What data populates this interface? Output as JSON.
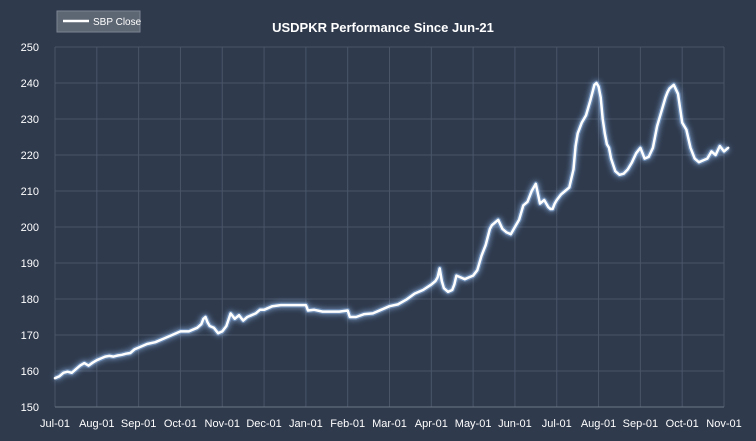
{
  "chart_data": {
    "type": "line",
    "title": "USDPKR Performance Since Jun-21",
    "xlabel": "",
    "ylabel": "",
    "ylim": [
      150,
      250
    ],
    "yticks": [
      150,
      160,
      170,
      180,
      190,
      200,
      210,
      220,
      230,
      240,
      250
    ],
    "xticks": [
      "Jul-01",
      "Aug-01",
      "Sep-01",
      "Oct-01",
      "Nov-01",
      "Dec-01",
      "Jan-01",
      "Feb-01",
      "Mar-01",
      "Apr-01",
      "May-01",
      "Jun-01",
      "Jul-01",
      "Aug-01",
      "Sep-01",
      "Oct-01",
      "Nov-01"
    ],
    "grid": true,
    "legend_position": "top-left",
    "background_color": "#2f3a4d",
    "grid_color": "#4a5568",
    "line_color": "#ffffff",
    "glow_color": "#9ec8ff",
    "series": [
      {
        "name": "SBP Close",
        "x": [
          0.0,
          0.1,
          0.2,
          0.3,
          0.4,
          0.5,
          0.6,
          0.7,
          0.8,
          0.9,
          1.0,
          1.1,
          1.2,
          1.3,
          1.4,
          1.5,
          1.6,
          1.7,
          1.8,
          1.9,
          2.0,
          2.2,
          2.4,
          2.6,
          2.8,
          3.0,
          3.2,
          3.4,
          3.5,
          3.55,
          3.6,
          3.65,
          3.7,
          3.8,
          3.9,
          4.0,
          4.1,
          4.2,
          4.3,
          4.4,
          4.5,
          4.6,
          4.7,
          4.8,
          4.9,
          5.0,
          5.2,
          5.4,
          5.6,
          5.8,
          6.0,
          6.05,
          6.2,
          6.4,
          6.6,
          6.8,
          7.0,
          7.05,
          7.2,
          7.4,
          7.6,
          7.8,
          8.0,
          8.2,
          8.4,
          8.6,
          8.8,
          9.0,
          9.1,
          9.15,
          9.2,
          9.25,
          9.3,
          9.4,
          9.5,
          9.55,
          9.6,
          9.7,
          9.8,
          9.9,
          10.0,
          10.1,
          10.2,
          10.3,
          10.4,
          10.45,
          10.5,
          10.6,
          10.7,
          10.8,
          10.9,
          11.0,
          11.1,
          11.2,
          11.3,
          11.4,
          11.5,
          11.6,
          11.7,
          11.8,
          11.85,
          11.9,
          11.95,
          12.0,
          12.1,
          12.2,
          12.3,
          12.4,
          12.45,
          12.5,
          12.6,
          12.7,
          12.8,
          12.9,
          12.95,
          13.0,
          13.05,
          13.1,
          13.15,
          13.2,
          13.25,
          13.3,
          13.4,
          13.5,
          13.6,
          13.7,
          13.8,
          13.9,
          14.0,
          14.1,
          14.2,
          14.3,
          14.4,
          14.5,
          14.6,
          14.65,
          14.7,
          14.8,
          14.9,
          15.0,
          15.1,
          15.2,
          15.3,
          15.4,
          15.5,
          15.6,
          15.7,
          15.8,
          15.9,
          16.0,
          16.1
        ],
        "values": [
          158.0,
          158.5,
          159.5,
          159.8,
          159.5,
          160.5,
          161.5,
          162.2,
          161.5,
          162.3,
          163.0,
          163.5,
          164.0,
          164.2,
          164.0,
          164.3,
          164.5,
          164.8,
          165.0,
          166.0,
          166.5,
          167.5,
          168.0,
          169.0,
          170.0,
          171.0,
          171.0,
          172.0,
          173.0,
          174.5,
          175.0,
          173.5,
          172.5,
          172.0,
          170.5,
          171.0,
          172.5,
          176.0,
          174.5,
          175.5,
          174.0,
          175.0,
          175.5,
          176.0,
          177.0,
          177.0,
          178.0,
          178.3,
          178.3,
          178.3,
          178.3,
          176.8,
          177.0,
          176.5,
          176.5,
          176.5,
          176.8,
          175.0,
          175.0,
          175.8,
          176.0,
          177.0,
          178.0,
          178.5,
          179.8,
          181.5,
          182.5,
          184.0,
          185.0,
          186.0,
          188.5,
          185.0,
          183.0,
          182.0,
          182.5,
          184.0,
          186.5,
          186.0,
          185.5,
          186.0,
          186.5,
          188.0,
          192.0,
          195.0,
          199.5,
          200.5,
          201.0,
          202.0,
          199.5,
          198.5,
          198.0,
          200.0,
          202.0,
          206.0,
          207.0,
          210.0,
          212.0,
          206.5,
          207.5,
          205.5,
          205.0,
          205.0,
          206.5,
          207.5,
          209.0,
          210.0,
          211.0,
          216.0,
          222.5,
          226.0,
          229.0,
          231.0,
          235.0,
          239.5,
          240.0,
          239.0,
          236.0,
          230.0,
          226.0,
          223.0,
          222.0,
          219.0,
          215.5,
          214.5,
          214.8,
          216.0,
          218.0,
          220.5,
          222.0,
          219.0,
          219.5,
          222.0,
          228.0,
          232.0,
          236.0,
          237.5,
          238.5,
          239.5,
          237.0,
          229.0,
          227.0,
          222.0,
          219.0,
          218.0,
          218.5,
          219.0,
          221.0,
          220.0,
          222.5,
          221.0,
          222.0
        ]
      }
    ]
  }
}
